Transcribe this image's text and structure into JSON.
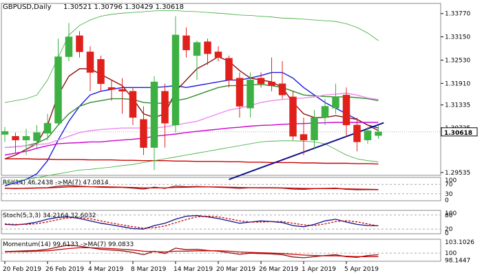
{
  "header": {
    "symbol": "GBPUSD,Daily",
    "ohlc": "1.30521 1.30796 1.30429 1.30618"
  },
  "colors": {
    "bull": "#3cb043",
    "bear": "#e0201b",
    "ma_blue": "#1a1ae0",
    "ma_darkred": "#8b1010",
    "ma_green": "#2e8b2e",
    "ma_pink": "#ee88ee",
    "ma_magenta": "#cc00cc",
    "ma_red": "#cc0000",
    "bollinger": "#33aa33",
    "trendline": "#101088",
    "panel_border": "#8a8a8a",
    "price_tag_fill": "#ffffff"
  },
  "chart_data": [
    {
      "type": "candlestick",
      "title": "GBPUSD,Daily",
      "ylim": [
        1.2946,
        1.3404
      ],
      "y_ticks": [
        "1.33770",
        "1.33150",
        "1.32530",
        "1.31910",
        "1.31335",
        "1.30725",
        "1.30618",
        "1.29535"
      ],
      "x_ticks": [
        "20 Feb 2019",
        "26 Feb 2019",
        "4 Mar 2019",
        "8 Mar 2019",
        "14 Mar 2019",
        "20 Mar 2019",
        "26 Mar 2019",
        "1 Apr 2019",
        "5 Apr 2019"
      ],
      "current_price": "1.30618",
      "candles": [
        {
          "o": 1.3055,
          "h": 1.3075,
          "l": 1.3035,
          "c": 1.3063
        },
        {
          "o": 1.305,
          "h": 1.306,
          "l": 1.3005,
          "c": 1.304
        },
        {
          "o": 1.304,
          "h": 1.307,
          "l": 1.3,
          "c": 1.305
        },
        {
          "o": 1.3038,
          "h": 1.308,
          "l": 1.302,
          "c": 1.306
        },
        {
          "o": 1.3058,
          "h": 1.311,
          "l": 1.304,
          "c": 1.3085
        },
        {
          "o": 1.3085,
          "h": 1.331,
          "l": 1.308,
          "c": 1.3262
        },
        {
          "o": 1.3262,
          "h": 1.3352,
          "l": 1.325,
          "c": 1.3315
        },
        {
          "o": 1.3318,
          "h": 1.333,
          "l": 1.326,
          "c": 1.3275
        },
        {
          "o": 1.3275,
          "h": 1.329,
          "l": 1.317,
          "c": 1.322
        },
        {
          "o": 1.3255,
          "h": 1.3265,
          "l": 1.317,
          "c": 1.319
        },
        {
          "o": 1.318,
          "h": 1.32,
          "l": 1.3145,
          "c": 1.3175
        },
        {
          "o": 1.3175,
          "h": 1.3205,
          "l": 1.311,
          "c": 1.317
        },
        {
          "o": 1.317,
          "h": 1.318,
          "l": 1.308,
          "c": 1.31
        },
        {
          "o": 1.3095,
          "h": 1.313,
          "l": 1.3,
          "c": 1.302
        },
        {
          "o": 1.302,
          "h": 1.321,
          "l": 1.296,
          "c": 1.3195
        },
        {
          "o": 1.317,
          "h": 1.319,
          "l": 1.302,
          "c": 1.3085
        },
        {
          "o": 1.308,
          "h": 1.337,
          "l": 1.306,
          "c": 1.332
        },
        {
          "o": 1.3318,
          "h": 1.334,
          "l": 1.326,
          "c": 1.328
        },
        {
          "o": 1.3265,
          "h": 1.3305,
          "l": 1.32,
          "c": 1.33
        },
        {
          "o": 1.3302,
          "h": 1.331,
          "l": 1.324,
          "c": 1.327
        },
        {
          "o": 1.3275,
          "h": 1.329,
          "l": 1.325,
          "c": 1.326
        },
        {
          "o": 1.3258,
          "h": 1.3265,
          "l": 1.318,
          "c": 1.32
        },
        {
          "o": 1.3205,
          "h": 1.322,
          "l": 1.31,
          "c": 1.313
        },
        {
          "o": 1.3125,
          "h": 1.322,
          "l": 1.31,
          "c": 1.32
        },
        {
          "o": 1.3205,
          "h": 1.322,
          "l": 1.318,
          "c": 1.319
        },
        {
          "o": 1.3195,
          "h": 1.326,
          "l": 1.317,
          "c": 1.3185
        },
        {
          "o": 1.319,
          "h": 1.325,
          "l": 1.315,
          "c": 1.316
        },
        {
          "o": 1.3155,
          "h": 1.317,
          "l": 1.304,
          "c": 1.305
        },
        {
          "o": 1.3055,
          "h": 1.31,
          "l": 1.3,
          "c": 1.304
        },
        {
          "o": 1.304,
          "h": 1.312,
          "l": 1.3015,
          "c": 1.31
        },
        {
          "o": 1.31,
          "h": 1.315,
          "l": 1.308,
          "c": 1.313
        },
        {
          "o": 1.3125,
          "h": 1.319,
          "l": 1.311,
          "c": 1.3155
        },
        {
          "o": 1.316,
          "h": 1.318,
          "l": 1.305,
          "c": 1.308
        },
        {
          "o": 1.308,
          "h": 1.31,
          "l": 1.301,
          "c": 1.3035
        },
        {
          "o": 1.304,
          "h": 1.3075,
          "l": 1.303,
          "c": 1.3065
        },
        {
          "o": 1.3052,
          "h": 1.308,
          "l": 1.3043,
          "c": 1.3062
        }
      ],
      "overlays": [
        {
          "color_key": "ma_blue",
          "values": [
            1.2918,
            1.2926,
            1.2935,
            1.295,
            1.2985,
            1.304,
            1.309,
            1.313,
            1.316,
            1.317,
            1.3175,
            1.318,
            1.318,
            1.318,
            1.318,
            1.3182,
            1.3185,
            1.318,
            1.3185,
            1.319,
            1.3195,
            1.32,
            1.32,
            1.3205,
            1.3212,
            1.322,
            1.322,
            1.3205,
            1.318,
            1.316,
            1.314,
            1.3125,
            1.311,
            1.3095,
            1.308,
            1.3072
          ]
        },
        {
          "color_key": "ma_darkred",
          "values": [
            1.299,
            1.3,
            1.3015,
            1.303,
            1.308,
            1.316,
            1.321,
            1.323,
            1.323,
            1.3215,
            1.32,
            1.3185,
            1.315,
            1.311,
            1.31,
            1.311,
            1.317,
            1.32,
            1.323,
            1.3245,
            1.3262,
            1.325,
            1.3225,
            1.3205,
            1.32,
            1.3195,
            1.318,
            1.314,
            1.311,
            1.31,
            1.31,
            1.3105,
            1.31,
            1.3095,
            1.308,
            1.3065
          ]
        },
        {
          "color_key": "ma_green",
          "values": [
            1.302,
            1.3022,
            1.3025,
            1.3032,
            1.3045,
            1.308,
            1.311,
            1.313,
            1.314,
            1.3145,
            1.315,
            1.315,
            1.3148,
            1.314,
            1.3138,
            1.3138,
            1.3145,
            1.315,
            1.316,
            1.317,
            1.318,
            1.3185,
            1.3185,
            1.3187,
            1.3188,
            1.3185,
            1.318,
            1.317,
            1.316,
            1.3158,
            1.3156,
            1.3155,
            1.3155,
            1.3153,
            1.315,
            1.3145
          ]
        },
        {
          "color_key": "ma_pink",
          "values": [
            1.302,
            1.3022,
            1.3025,
            1.3028,
            1.303,
            1.304,
            1.305,
            1.306,
            1.3065,
            1.3068,
            1.307,
            1.3072,
            1.3072,
            1.3072,
            1.3072,
            1.3075,
            1.308,
            1.3085,
            1.309,
            1.31,
            1.311,
            1.312,
            1.3125,
            1.3132,
            1.314,
            1.3145,
            1.3148,
            1.315,
            1.3152,
            1.3155,
            1.316,
            1.3162,
            1.3165,
            1.316,
            1.3152,
            1.3148
          ]
        },
        {
          "color_key": "ma_magenta",
          "values": [
            1.3,
            1.3005,
            1.301,
            1.3018,
            1.3025,
            1.303,
            1.3032,
            1.3033,
            1.3035,
            1.3035,
            1.3038,
            1.304,
            1.3042,
            1.3045,
            1.305,
            1.3053,
            1.3056,
            1.306,
            1.3063,
            1.3066,
            1.3069,
            1.3072,
            1.3074,
            1.3077,
            1.3079,
            1.308,
            1.3082,
            1.3083,
            1.3084,
            1.3085,
            1.3086,
            1.3087,
            1.3087,
            1.3087,
            1.3087,
            1.3087
          ]
        },
        {
          "color_key": "ma_red",
          "values": [
            1.299,
            1.299,
            1.299,
            1.2989,
            1.2989,
            1.2988,
            1.2988,
            1.2988,
            1.2987,
            1.2987,
            1.2987,
            1.2986,
            1.2986,
            1.2985,
            1.2985,
            1.2985,
            1.2984,
            1.2984,
            1.2983,
            1.2983,
            1.2983,
            1.2982,
            1.2982,
            1.2981,
            1.2981,
            1.298,
            1.298,
            1.298,
            1.2979,
            1.2979,
            1.2978,
            1.2978,
            1.2978,
            1.2977,
            1.2977,
            1.2976
          ]
        },
        {
          "color_key": "bollinger",
          "values": [
            1.314,
            1.3145,
            1.315,
            1.316,
            1.32,
            1.326,
            1.332,
            1.3345,
            1.336,
            1.337,
            1.3375,
            1.3378,
            1.338,
            1.3382,
            1.3384,
            1.3385,
            1.3385,
            1.3383,
            1.3382,
            1.338,
            1.3378,
            1.3376,
            1.3373,
            1.3372,
            1.337,
            1.3368,
            1.3365,
            1.3364,
            1.3362,
            1.336,
            1.3358,
            1.3356,
            1.335,
            1.334,
            1.3325,
            1.3305
          ]
        },
        {
          "color_key": "bollinger",
          "values": [
            1.2925,
            1.293,
            1.2935,
            1.294,
            1.2945,
            1.295,
            1.2955,
            1.296,
            1.2962,
            1.2965,
            1.2968,
            1.2972,
            1.2975,
            1.298,
            1.2985,
            1.299,
            1.2995,
            1.3,
            1.3005,
            1.301,
            1.3015,
            1.302,
            1.3025,
            1.303,
            1.3035,
            1.3037,
            1.3038,
            1.3038,
            1.3037,
            1.3035,
            1.303,
            1.3015,
            1.3,
            1.299,
            1.2985,
            1.2982
          ]
        }
      ],
      "trendline": [
        [
          21,
          1.2935
        ],
        [
          35.5,
          1.3086
        ]
      ]
    },
    {
      "type": "line",
      "title": "RSI(14) 46.2438 ->MA(7) 47.0814",
      "ylim": [
        0,
        100
      ],
      "y_ticks": [
        "100",
        "70",
        "30",
        "0"
      ],
      "levels": [
        70,
        30
      ],
      "series": [
        {
          "color_key": "ma_darkred",
          "values": [
            54,
            52,
            54,
            55,
            56,
            62,
            65,
            62,
            60,
            58,
            57,
            57,
            54,
            50,
            58,
            53,
            63,
            60,
            61,
            59,
            58,
            56,
            53,
            56,
            55,
            55,
            54,
            50,
            49,
            52,
            53,
            54,
            49,
            47,
            48,
            47
          ]
        },
        {
          "color_key": "ma_red",
          "values": [
            53,
            53,
            53,
            54,
            55,
            57,
            59,
            60,
            60,
            60,
            59,
            58,
            57,
            55,
            55,
            55,
            57,
            58,
            59,
            59,
            59,
            58,
            57,
            56,
            56,
            56,
            55,
            54,
            53,
            52,
            52,
            52,
            51,
            50,
            49,
            48
          ]
        }
      ]
    },
    {
      "type": "line",
      "title": "Stoch(5,3,3) 34.2164 32.6032",
      "ylim": [
        0,
        100
      ],
      "y_ticks": [
        "100",
        "80",
        "20",
        "0"
      ],
      "levels": [
        80,
        20
      ],
      "series": [
        {
          "color_key": "trendline",
          "values": [
            40,
            38,
            42,
            50,
            62,
            70,
            72,
            65,
            55,
            45,
            38,
            30,
            22,
            20,
            35,
            45,
            62,
            75,
            78,
            72,
            65,
            55,
            45,
            50,
            55,
            52,
            48,
            35,
            30,
            40,
            55,
            62,
            50,
            40,
            35,
            34
          ]
        },
        {
          "color_key": "ma_red",
          "values": [
            42,
            40,
            40,
            43,
            51,
            61,
            68,
            69,
            64,
            55,
            46,
            38,
            30,
            24,
            26,
            33,
            47,
            61,
            72,
            75,
            72,
            64,
            55,
            50,
            50,
            52,
            52,
            45,
            38,
            35,
            42,
            52,
            56,
            51,
            42,
            33
          ]
        }
      ]
    },
    {
      "type": "line",
      "title": "Momentum(14) 99.6133 ->MA(7) 99.0833",
      "ylim": [
        97.9,
        103.6
      ],
      "y_ticks": [
        "103.1026",
        "100",
        "98.1447"
      ],
      "levels": [
        100
      ],
      "series": [
        {
          "color_key": "ma_darkred",
          "values": [
            100.4,
            100.5,
            100.6,
            100.7,
            101.0,
            101.6,
            102.1,
            101.8,
            101.4,
            101.0,
            100.8,
            100.6,
            100.2,
            99.6,
            100.5,
            99.9,
            101.3,
            100.9,
            101.0,
            100.7,
            100.5,
            100.1,
            99.7,
            100.0,
            99.9,
            99.8,
            99.6,
            99.0,
            98.8,
            99.1,
            99.4,
            99.6,
            99.1,
            98.9,
            99.4,
            99.6
          ]
        },
        {
          "color_key": "ma_red",
          "values": [
            100.3,
            100.4,
            100.4,
            100.5,
            100.6,
            100.9,
            101.2,
            101.4,
            101.4,
            101.3,
            101.2,
            101.0,
            100.8,
            100.5,
            100.4,
            100.3,
            100.5,
            100.5,
            100.6,
            100.6,
            100.6,
            100.5,
            100.3,
            100.2,
            100.1,
            100.0,
            99.9,
            99.7,
            99.5,
            99.4,
            99.3,
            99.3,
            99.2,
            99.1,
            99.1,
            99.1
          ]
        }
      ]
    }
  ]
}
